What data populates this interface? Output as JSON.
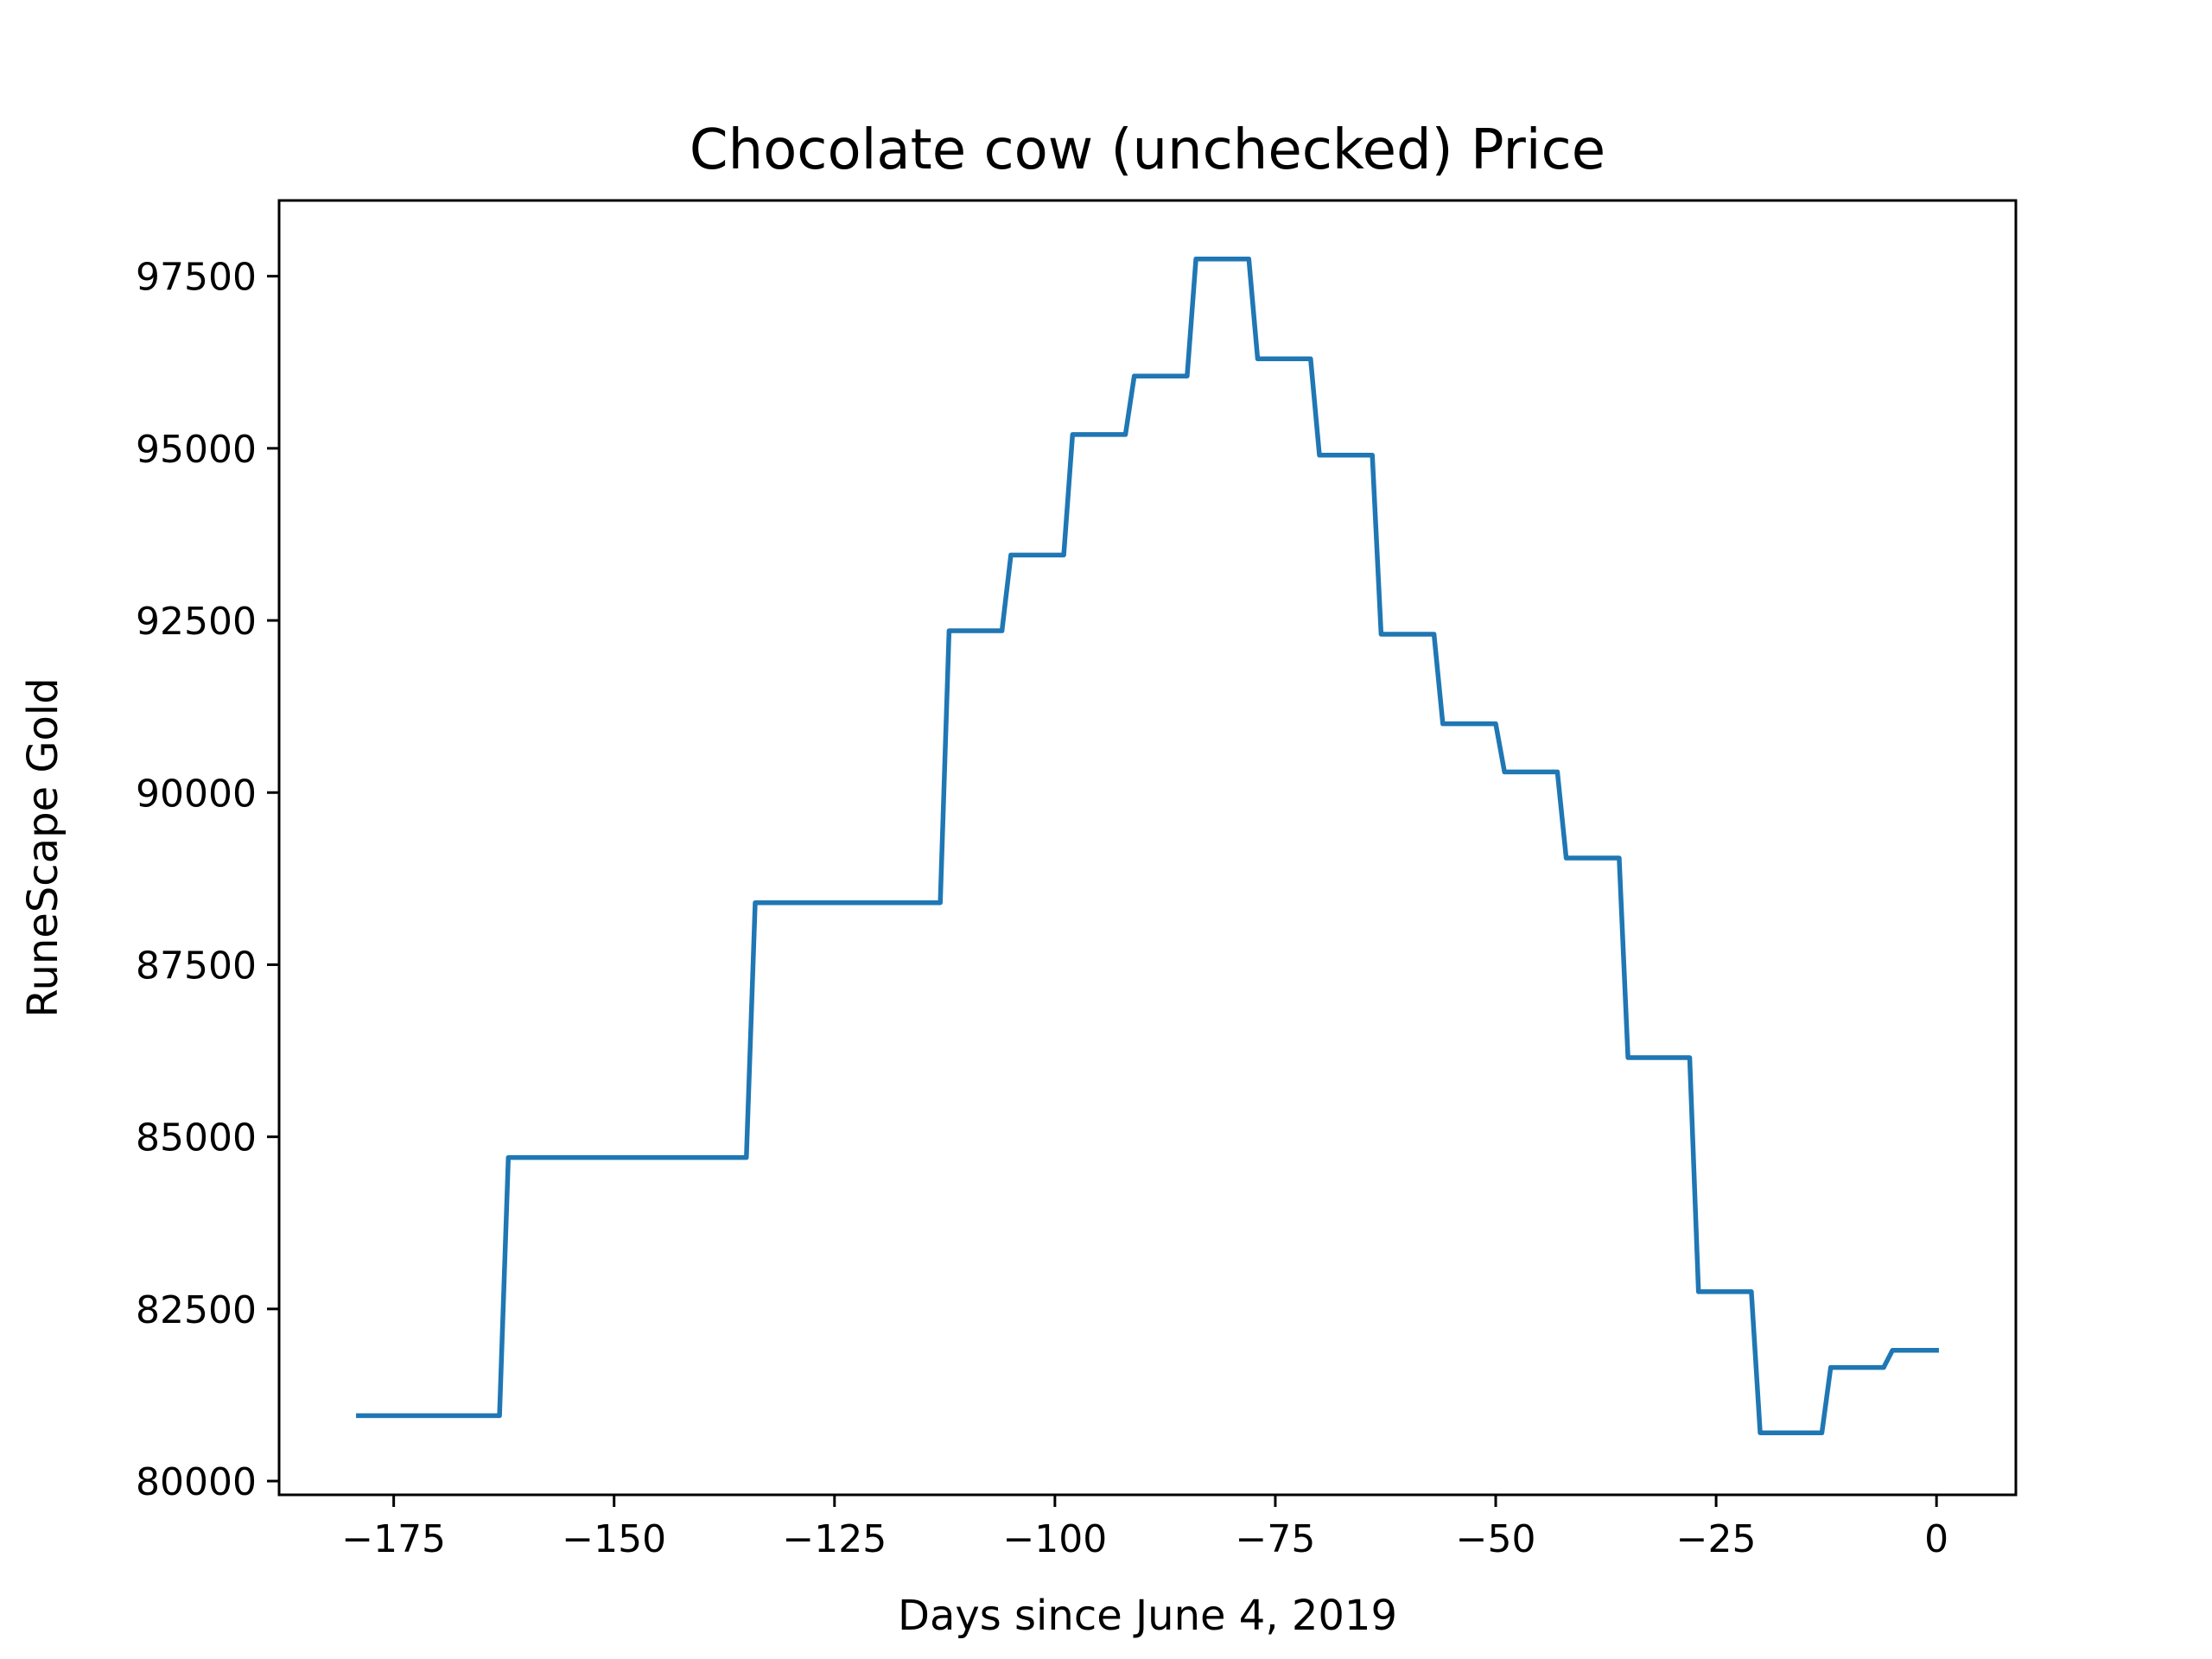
{
  "chart_data": {
    "type": "line",
    "title": "Chocolate cow (unchecked) Price",
    "xlabel": "Days since June 4, 2019",
    "ylabel": "RuneScape Gold",
    "xlim": [
      -188,
      9
    ],
    "ylim": [
      79800,
      98600
    ],
    "xticks": [
      -175,
      -150,
      -125,
      -100,
      -75,
      -50,
      -25,
      0
    ],
    "xtick_labels": [
      "−175",
      "−150",
      "−125",
      "−100",
      "−75",
      "−50",
      "−25",
      "0"
    ],
    "yticks": [
      80000,
      82500,
      85000,
      87500,
      90000,
      92500,
      95000,
      97500
    ],
    "ytick_labels": [
      "80000",
      "82500",
      "85000",
      "87500",
      "90000",
      "92500",
      "95000",
      "97500"
    ],
    "grid": false,
    "legend": "none",
    "series": [
      {
        "color": "#1f77b4",
        "x": [
          -179,
          -163,
          -162,
          -135,
          -134,
          -113,
          -112,
          -106,
          -105,
          -99,
          -98,
          -92,
          -91,
          -85,
          -84,
          -78,
          -77,
          -71,
          -70,
          -64,
          -63,
          -57,
          -56,
          -50,
          -49,
          -43,
          -42,
          -36,
          -35,
          -28,
          -27,
          -21,
          -20,
          -13,
          -12,
          -6,
          -5,
          0
        ],
        "y": [
          80950,
          80950,
          84700,
          84700,
          88400,
          88400,
          92350,
          92350,
          93450,
          93450,
          95200,
          95200,
          96050,
          96050,
          97750,
          97750,
          96300,
          96300,
          94900,
          94900,
          92300,
          92300,
          91000,
          91000,
          90300,
          90300,
          89050,
          89050,
          86150,
          86150,
          82750,
          82750,
          80700,
          80700,
          81650,
          81650,
          81900,
          81900
        ]
      }
    ]
  }
}
